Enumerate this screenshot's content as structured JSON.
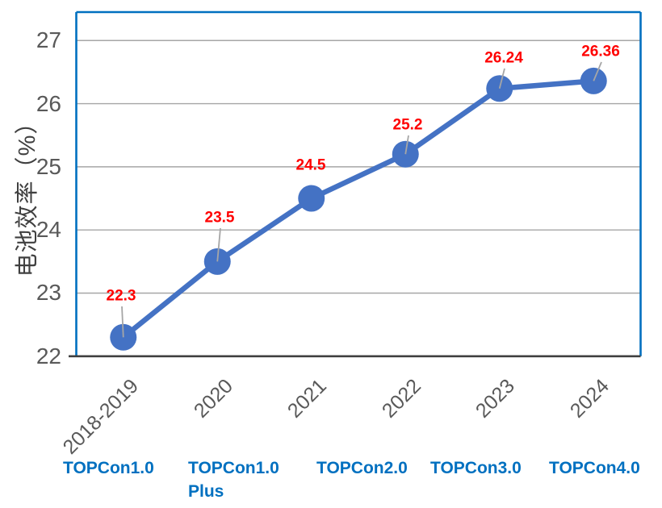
{
  "chart_data": {
    "type": "line",
    "ylabel": "电池效率（%）",
    "categories": [
      "2018-2019",
      "2020",
      "2021",
      "2022",
      "2023",
      "2024"
    ],
    "series": [
      {
        "values": [
          22.3,
          23.5,
          24.5,
          25.2,
          26.24,
          26.36
        ]
      }
    ],
    "data_labels": [
      "22.3",
      "23.5",
      "24.5",
      "25.2",
      "26.24",
      "26.36"
    ],
    "yticks": [
      22,
      23,
      24,
      25,
      26,
      27
    ],
    "ylim": [
      22,
      27.45
    ],
    "grid": "horizontal-major",
    "legend": "none",
    "stage_labels": [
      "TOPCon1.0",
      "TOPCon1.0\nPlus",
      "TOPCon2.0",
      "TOPCon3.0",
      "TOPCon4.0"
    ],
    "colors": {
      "series_line": "#4472C4",
      "marker": "#4472C4",
      "data_label": "#FF0000",
      "plot_border": "#0070C0",
      "gridline": "#A6A6A6",
      "axis_line": "#404040",
      "tick_label": "#595959",
      "axis_title": "#404040",
      "stage_label": "#0070C0",
      "leader_line": "#A6A6A6"
    }
  }
}
